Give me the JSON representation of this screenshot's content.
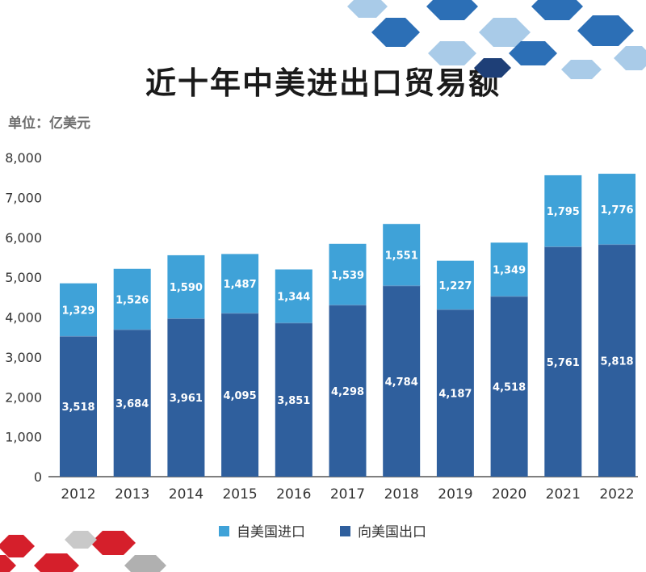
{
  "title": "近十年中美进出口贸易额",
  "unit": "单位：亿美元",
  "colors": {
    "export": "#2f5f9d",
    "import": "#3fa2d8",
    "axis_text": "#333333",
    "bar_label": "#ffffff",
    "decor_blue": "#2c6fb6",
    "decor_light": "#a9cbe8",
    "decor_red": "#d51f2b"
  },
  "chart_data": {
    "type": "bar",
    "stacked": true,
    "categories": [
      "2012",
      "2013",
      "2014",
      "2015",
      "2016",
      "2017",
      "2018",
      "2019",
      "2020",
      "2021",
      "2022"
    ],
    "series": [
      {
        "name": "向美国出口",
        "color": "#2f5f9d",
        "values": [
          3518,
          3684,
          3961,
          4095,
          3851,
          4298,
          4784,
          4187,
          4518,
          5761,
          5818
        ]
      },
      {
        "name": "自美国进口",
        "color": "#3fa2d8",
        "values": [
          1329,
          1526,
          1590,
          1487,
          1344,
          1539,
          1551,
          1227,
          1349,
          1795,
          1776
        ]
      }
    ],
    "ylim": [
      0,
      8000
    ],
    "yticks": [
      0,
      1000,
      2000,
      3000,
      4000,
      5000,
      6000,
      7000,
      8000
    ],
    "ytick_labels": [
      "0",
      "1,000",
      "2,000",
      "3,000",
      "4,000",
      "5,000",
      "6,000",
      "7,000",
      "8,000"
    ],
    "legend": [
      {
        "label": "自美国进口",
        "color": "#3fa2d8"
      },
      {
        "label": "向美国出口",
        "color": "#2f5f9d"
      }
    ],
    "legend_position": "bottom",
    "grid": false
  }
}
